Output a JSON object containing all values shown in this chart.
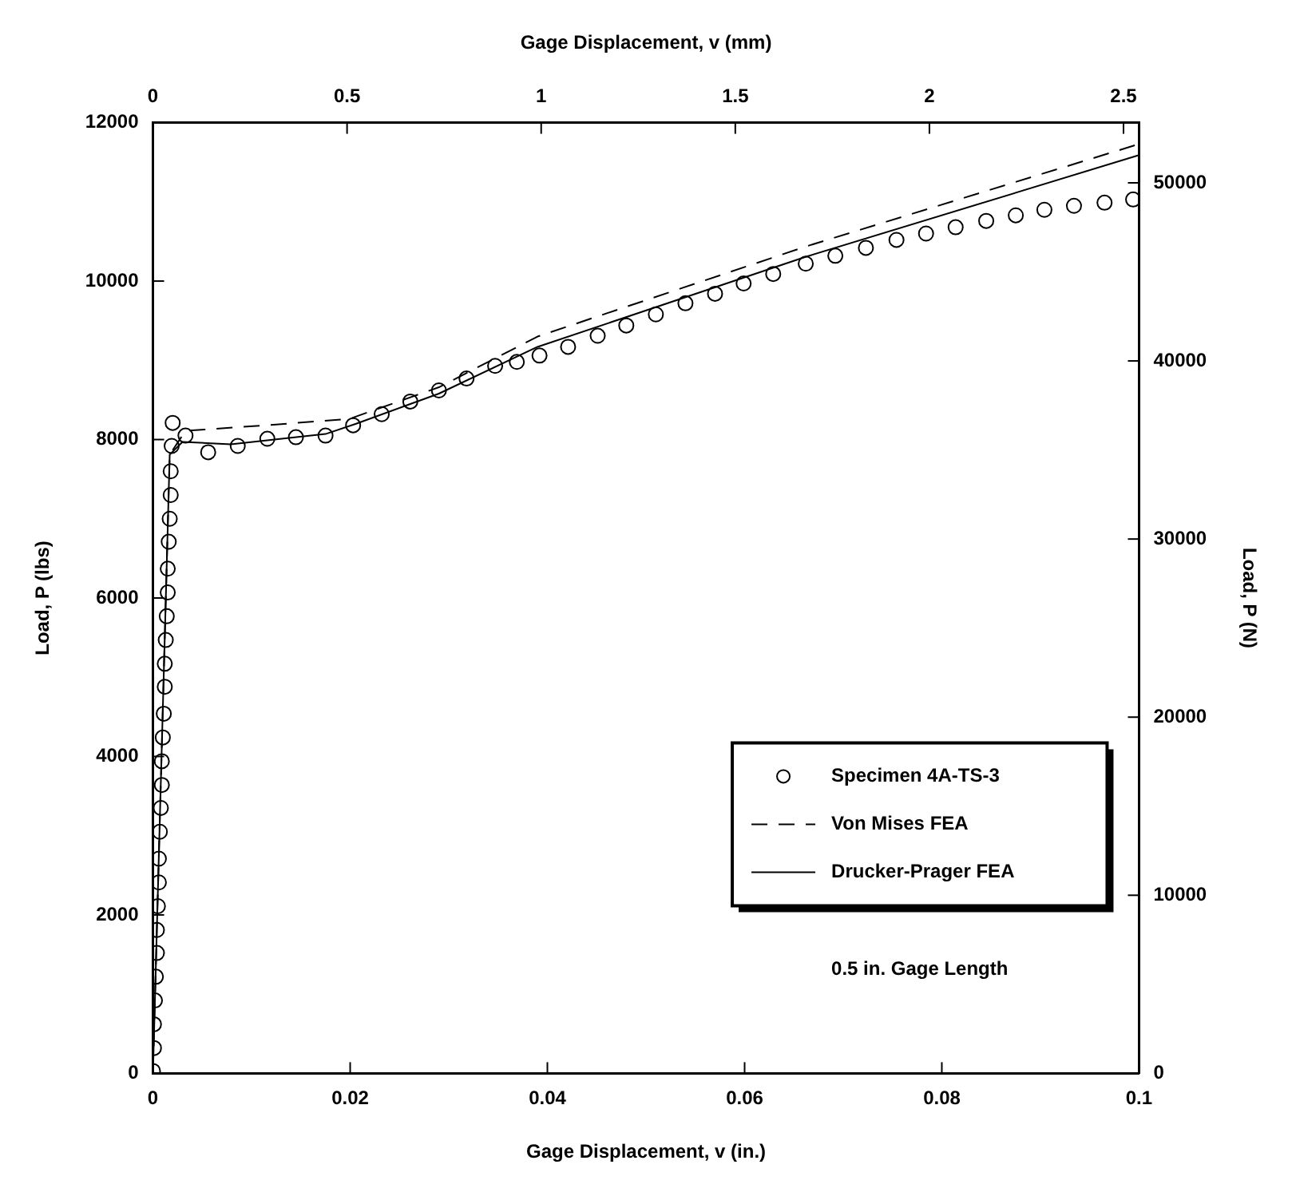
{
  "chart_data": {
    "type": "scatter",
    "xlabel": "Gage Displacement, v (in.)",
    "x2label": "Gage Displacement, v (mm)",
    "ylabel": "Load, P (lbs)",
    "y2label": "Load, P (N)",
    "xlim": [
      0,
      0.1
    ],
    "xticks": [
      0,
      0.02,
      0.04,
      0.06,
      0.08,
      0.1
    ],
    "x2lim": [
      0,
      2.54
    ],
    "x2ticks": [
      0,
      0.5,
      1,
      1.5,
      2,
      2.5
    ],
    "ylim": [
      0,
      12000
    ],
    "yticks": [
      0,
      2000,
      4000,
      6000,
      8000,
      10000,
      12000
    ],
    "y2lim": [
      0,
      53379
    ],
    "y2ticks": [
      0,
      10000,
      20000,
      30000,
      40000,
      50000
    ],
    "grid": false,
    "legend": "bottom right",
    "annotations": [
      "0.5 in. Gage Length"
    ],
    "series": [
      {
        "name": "Specimen 4A-TS-3",
        "type": "scatter",
        "marker": "circle",
        "color": "#000000",
        "x": [
          0,
          0.0001,
          0.0001,
          0.0002,
          0.0003,
          0.0004,
          0.0004,
          0.0005,
          0.0006,
          0.0006,
          0.0007,
          0.0008,
          0.0009,
          0.0009,
          0.001,
          0.0011,
          0.0012,
          0.0012,
          0.0013,
          0.0014,
          0.0015,
          0.0015,
          0.0016,
          0.0017,
          0.0018,
          0.0018,
          0.0019,
          0.002,
          0.0033,
          0.0056,
          0.0086,
          0.0116,
          0.0145,
          0.0175,
          0.0203,
          0.0232,
          0.0261,
          0.029,
          0.0318,
          0.0347,
          0.0369,
          0.0392,
          0.0421,
          0.0451,
          0.048,
          0.051,
          0.054,
          0.057,
          0.0599,
          0.0629,
          0.0662,
          0.0692,
          0.0723,
          0.0754,
          0.0784,
          0.0814,
          0.0845,
          0.0875,
          0.0904,
          0.0934,
          0.0965,
          0.0994
        ],
        "values": [
          30,
          320,
          620,
          920,
          1220,
          1520,
          1810,
          2110,
          2410,
          2710,
          3050,
          3350,
          3640,
          3940,
          4240,
          4540,
          4880,
          5170,
          5470,
          5770,
          6070,
          6370,
          6710,
          7000,
          7300,
          7600,
          7920,
          8210,
          8050,
          7840,
          7920,
          8010,
          8030,
          8050,
          8180,
          8320,
          8480,
          8620,
          8770,
          8930,
          8980,
          9060,
          9170,
          9310,
          9440,
          9580,
          9720,
          9840,
          9970,
          10090,
          10220,
          10320,
          10420,
          10520,
          10600,
          10680,
          10760,
          10830,
          10900,
          10950,
          10990,
          11030
        ]
      },
      {
        "name": "Von Mises FEA",
        "type": "line",
        "marker": "none",
        "line_style": "dashed",
        "color": "#000000",
        "x": [
          0,
          0.0017,
          0.0033,
          0.0114,
          0.0199,
          0.029,
          0.039,
          0.0663,
          0.1
        ],
        "values": [
          0,
          7810,
          8110,
          8180,
          8260,
          8660,
          9300,
          10440,
          11730
        ]
      },
      {
        "name": "Drucker-Prager FEA",
        "type": "line",
        "marker": "none",
        "line_style": "solid",
        "color": "#000000",
        "x": [
          0,
          0.0017,
          0.003,
          0.0079,
          0.0175,
          0.0206,
          0.029,
          0.039,
          0.0663,
          0.1
        ],
        "values": [
          0,
          7810,
          7970,
          7940,
          8070,
          8200,
          8580,
          9170,
          10310,
          11590
        ]
      }
    ]
  }
}
